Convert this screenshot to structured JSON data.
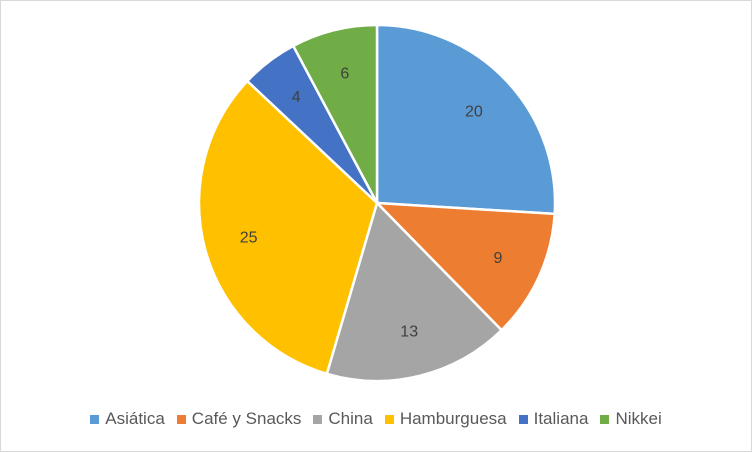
{
  "chart_data": {
    "type": "pie",
    "title": "",
    "categories": [
      "Asiática",
      "Café y Snacks",
      "China",
      "Hamburguesa",
      "Italiana",
      "Nikkei"
    ],
    "values": [
      20,
      9,
      13,
      25,
      4,
      6
    ],
    "colors": [
      "#5b9bd5",
      "#ed7d31",
      "#a5a5a5",
      "#ffc000",
      "#4472c4",
      "#70ad47"
    ],
    "data_labels": [
      "20",
      "9",
      "13",
      "25",
      "4",
      "6"
    ],
    "start_angle": "12 o'clock",
    "direction": "clockwise",
    "legend": {
      "position": "bottom",
      "items": [
        {
          "label": "Asiática",
          "color": "#5b9bd5"
        },
        {
          "label": "Café y Snacks",
          "color": "#ed7d31"
        },
        {
          "label": "China",
          "color": "#a5a5a5"
        },
        {
          "label": "Hamburguesa",
          "color": "#ffc000"
        },
        {
          "label": "Italiana",
          "color": "#4472c4"
        },
        {
          "label": "Nikkei",
          "color": "#70ad47"
        }
      ]
    }
  }
}
